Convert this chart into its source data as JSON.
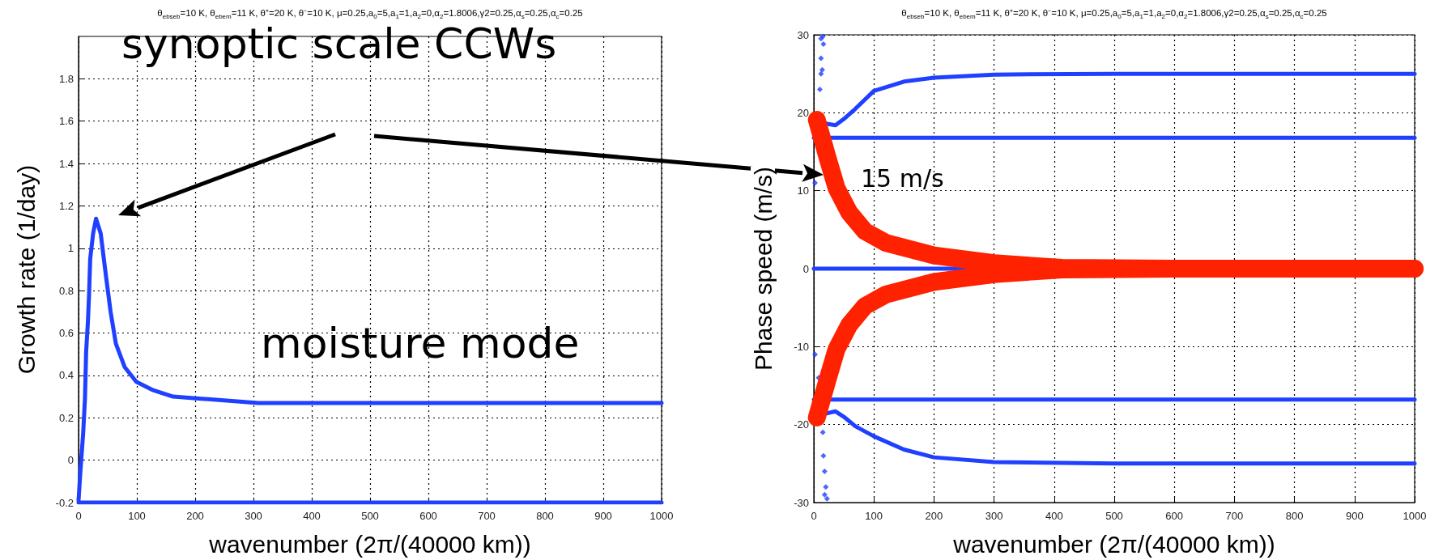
{
  "chart_data": [
    {
      "type": "line",
      "title": "θ$_{ebseb}$=10 K, θ$_{ebem}$=11 K, θ⁺=20 K, θ⁻=10  K, μ=0.25,a$_{0}$=5,a$_{1}$=1,a$_{2}$=0,α$_{2}$=1.8006,γ2=0.25,α$_{s}$=0.25,α$_{c}$=0.25",
      "xlabel": "wavenumber (2π/(40000 km))",
      "ylabel": "Growth rate (1/day)",
      "xlim": [
        0,
        1000
      ],
      "xticks": [
        0,
        100,
        200,
        300,
        400,
        500,
        600,
        700,
        800,
        900,
        1000
      ],
      "ylim": [
        -0.2,
        2.0
      ],
      "yticks": [
        -0.2,
        0,
        0.2,
        0.4,
        0.6,
        0.8,
        1,
        1.2,
        1.4,
        1.6,
        1.8
      ],
      "grid": true,
      "marker": "none",
      "line_style": "solid",
      "annotations": [
        "synoptic scale CCWs",
        "moisture mode"
      ],
      "series": [
        {
          "color": "#2040ff",
          "x": [
            0,
            3,
            8,
            11,
            13,
            16,
            18,
            20,
            25,
            30,
            38,
            47,
            55,
            64,
            79,
            99,
            128,
            162,
            211,
            308,
            500,
            1000
          ],
          "values": [
            -0.19,
            -0.06,
            0.13,
            0.29,
            0.51,
            0.65,
            0.78,
            0.95,
            1.07,
            1.14,
            1.07,
            0.87,
            0.7,
            0.55,
            0.44,
            0.37,
            0.33,
            0.3,
            0.29,
            0.27,
            0.27,
            0.27
          ]
        },
        {
          "color": "#2040ff",
          "x": [
            0,
            1000
          ],
          "values": [
            -0.2,
            -0.2
          ]
        }
      ]
    },
    {
      "type": "line",
      "title": "θ$_{ebseb}$=10 K, θ$_{ebem}$=11 K, θ⁺=20 K, θ⁻=10  K, μ=0.25,a$_{0}$=5,a$_{1}$=1,a$_{2}$=0,α$_{2}$=1.8006,γ2=0.25,α$_{s}$=0.25,α$_{c}$=0.25",
      "xlabel": "wavenumber (2π/(40000 km))",
      "ylabel": "Phase speed (m/s)",
      "xlim": [
        0,
        1000
      ],
      "xticks": [
        0,
        100,
        200,
        300,
        400,
        500,
        600,
        700,
        800,
        900,
        1000
      ],
      "ylim": [
        -30,
        30
      ],
      "yticks": [
        -30,
        -20,
        -10,
        0,
        10,
        20,
        30
      ],
      "grid": true,
      "marker": "none",
      "line_style": "solid",
      "annotations": [
        "15 m/s"
      ],
      "series": [
        {
          "color": "#2040ff",
          "x": [
            20,
            36,
            50,
            69,
            100,
            150,
            200,
            300,
            500,
            1000
          ],
          "values": [
            18.6,
            18.4,
            19.2,
            20.5,
            22.8,
            24.0,
            24.5,
            24.9,
            25,
            25
          ]
        },
        {
          "color": "#2040ff",
          "x": [
            0,
            1000
          ],
          "values": [
            16.8,
            16.8
          ]
        },
        {
          "color": "#2040ff",
          "x": [
            0,
            420
          ],
          "values": [
            0,
            0
          ]
        },
        {
          "color": "#2040ff",
          "x": [
            0,
            1000
          ],
          "values": [
            -16.8,
            -16.8
          ]
        },
        {
          "color": "#2040ff",
          "x": [
            20,
            36,
            50,
            69,
            100,
            150,
            200,
            300,
            500,
            1000
          ],
          "values": [
            -18.6,
            -18.3,
            -19.0,
            -20.2,
            -21.5,
            -23.2,
            -24.2,
            -24.8,
            -25,
            -25
          ]
        },
        {
          "type": "scatter",
          "marker": "diamond",
          "color": "#2040ff",
          "x": [
            2,
            5,
            8,
            10,
            12,
            14,
            12,
            16,
            12,
            15
          ],
          "values": [
            11,
            null,
            null,
            23,
            25,
            25.5,
            27,
            28.8,
            29.5,
            29.8
          ]
        },
        {
          "type": "scatter",
          "marker": "diamond",
          "color": "#2040ff",
          "x": [
            2,
            8,
            15,
            16,
            18,
            20,
            22,
            18
          ],
          "values": [
            -11,
            -14,
            -21,
            -24,
            -26,
            -28,
            -29.5,
            -29
          ]
        },
        {
          "color": "#ff2200",
          "x": [
            5,
            23,
            38,
            59,
            85,
            120,
            200,
            300,
            413,
            600,
            1000
          ],
          "values": [
            19.1,
            14.2,
            10.3,
            7.2,
            4.8,
            3.3,
            1.7,
            0.7,
            0.1,
            0,
            0
          ]
        },
        {
          "color": "#ff2200",
          "x": [
            5,
            23,
            38,
            59,
            85,
            120,
            200,
            300,
            413,
            600,
            1000
          ],
          "values": [
            -19.1,
            -14.2,
            -10.3,
            -7.2,
            -4.8,
            -3.3,
            -1.7,
            -0.7,
            -0.1,
            0,
            0
          ]
        }
      ]
    }
  ]
}
